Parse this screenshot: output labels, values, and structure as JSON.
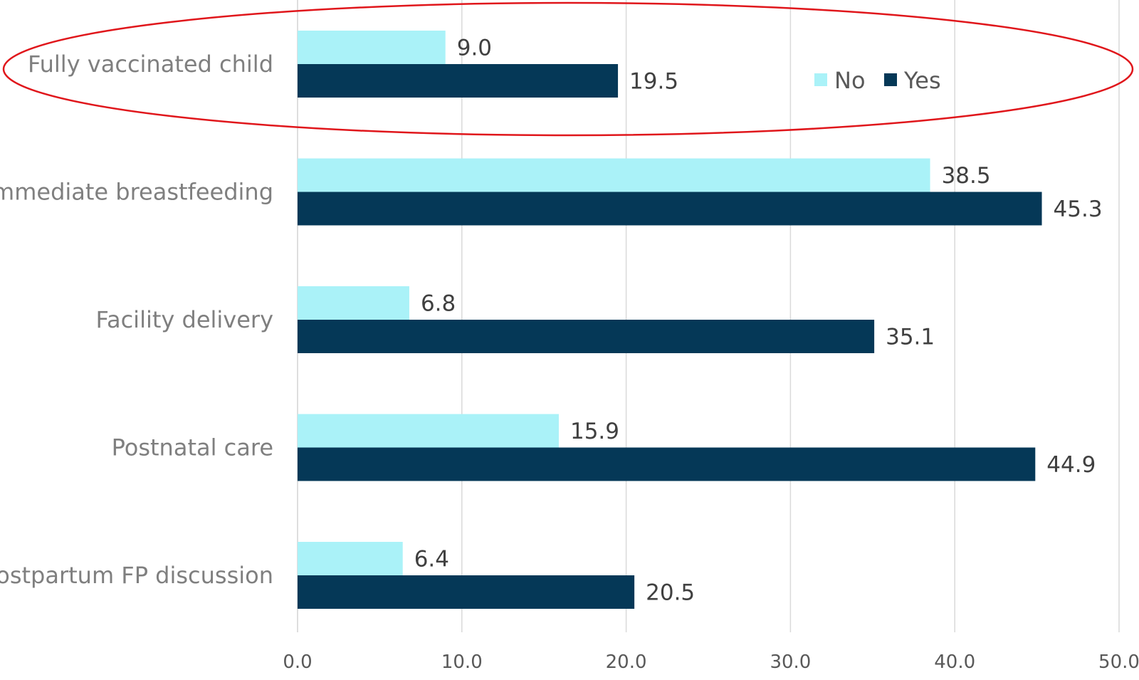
{
  "chart_data": {
    "type": "bar",
    "orientation": "horizontal",
    "categories": [
      "Fully vaccinated child",
      "Immediate breastfeeding",
      "Facility delivery",
      "Postnatal care",
      "Postpartum FP discussion"
    ],
    "series": [
      {
        "name": "No",
        "values": [
          9.0,
          38.5,
          6.8,
          15.9,
          6.4
        ],
        "color": "#aaf2f8"
      },
      {
        "name": "Yes",
        "values": [
          19.5,
          45.3,
          35.1,
          44.9,
          20.5
        ],
        "color": "#053857"
      }
    ],
    "xlim": [
      0,
      50
    ],
    "xticks": [
      "0.0",
      "10.0",
      "20.0",
      "30.0",
      "40.0",
      "50.0"
    ],
    "grid": "vertical",
    "legend_position": "top-right",
    "annotation": {
      "type": "ellipse",
      "target": "Fully vaccinated child",
      "color": "#e0161b"
    },
    "axis_color": "#d9d9d9"
  }
}
